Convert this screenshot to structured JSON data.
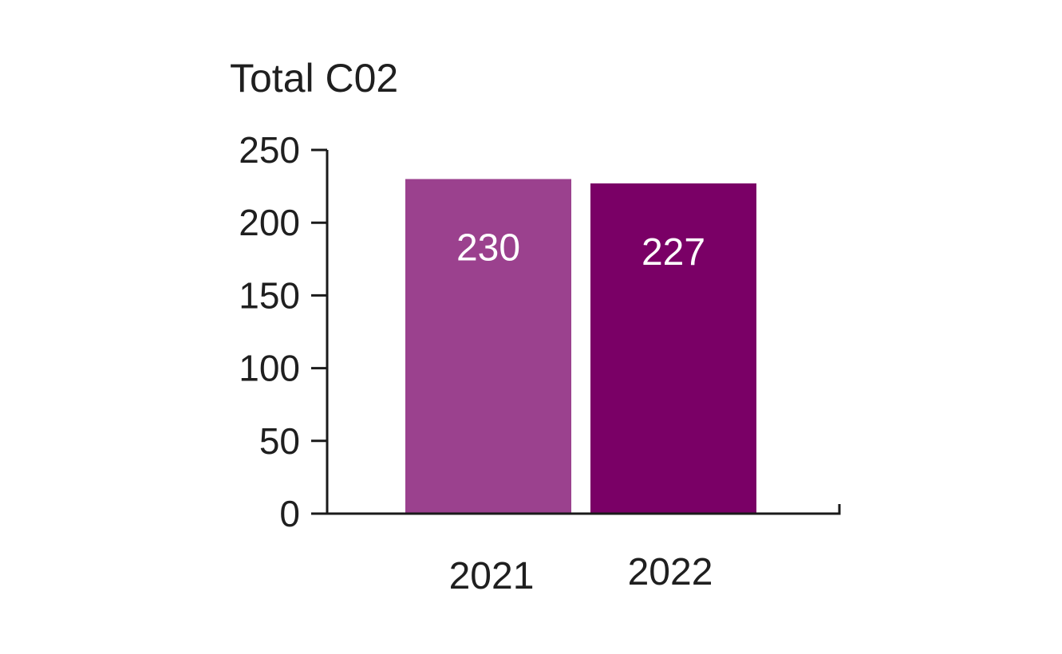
{
  "chart_data": {
    "type": "bar",
    "title": "Total C02",
    "categories": [
      "2021",
      "2022"
    ],
    "values": [
      230,
      227
    ],
    "value_labels": [
      "230",
      "227"
    ],
    "bar_colors": [
      "#9b418e",
      "#7a0066"
    ],
    "ylim": [
      0,
      250
    ],
    "yticks": [
      0,
      50,
      100,
      150,
      200,
      250
    ],
    "ytick_labels": [
      "0",
      "50",
      "100",
      "150",
      "200",
      "250"
    ],
    "grid": false,
    "legend": "none"
  }
}
